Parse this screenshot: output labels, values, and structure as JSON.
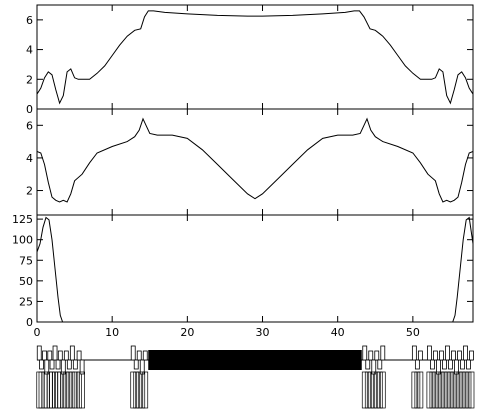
{
  "chart_data": [
    {
      "type": "line",
      "panel": "top",
      "xlim": [
        0,
        58
      ],
      "ylim": [
        0,
        7
      ],
      "yticks": [
        0,
        2,
        4,
        6
      ],
      "show_xtick_labels": false,
      "series": [
        {
          "x": [
            0,
            0.5,
            1,
            1.5,
            2,
            2.5,
            3,
            3.5,
            4,
            4.5,
            5,
            5.5,
            6,
            7,
            8,
            9,
            10,
            11,
            12,
            13,
            13.8,
            14.3,
            14.8,
            15.5,
            17,
            20,
            24,
            28,
            30,
            34,
            38,
            41,
            42.2,
            42.9,
            43.5,
            44.3,
            45,
            46,
            47,
            48,
            49,
            50,
            51,
            52,
            52.5,
            53,
            53.5,
            54,
            54.5,
            55,
            55.5,
            56,
            56.5,
            57,
            57.5,
            58
          ],
          "y": [
            1.0,
            1.4,
            2.1,
            2.5,
            2.3,
            1.3,
            0.4,
            0.9,
            2.5,
            2.7,
            2.1,
            2.0,
            2.0,
            2.0,
            2.4,
            2.9,
            3.6,
            4.3,
            4.9,
            5.3,
            5.4,
            6.2,
            6.6,
            6.6,
            6.5,
            6.4,
            6.3,
            6.25,
            6.25,
            6.3,
            6.4,
            6.5,
            6.6,
            6.6,
            6.2,
            5.4,
            5.3,
            4.9,
            4.3,
            3.6,
            2.9,
            2.4,
            2.0,
            2.0,
            2.0,
            2.1,
            2.7,
            2.5,
            0.9,
            0.4,
            1.3,
            2.3,
            2.5,
            2.1,
            1.4,
            1.0
          ]
        }
      ]
    },
    {
      "type": "line",
      "panel": "middle",
      "xlim": [
        0,
        58
      ],
      "ylim": [
        0.5,
        7
      ],
      "yticks": [
        2,
        4,
        6
      ],
      "show_xtick_labels": false,
      "series": [
        {
          "x": [
            0,
            0.5,
            1,
            1.5,
            2,
            2.5,
            3,
            3.5,
            4,
            4.5,
            5,
            6,
            7,
            8,
            10,
            12,
            13,
            13.6,
            14.1,
            14.5,
            15,
            16,
            18,
            20,
            22,
            24,
            26,
            28,
            29,
            30,
            32,
            34,
            36,
            38,
            40,
            42,
            43,
            43.5,
            43.9,
            44.4,
            45,
            46,
            48,
            50,
            51,
            52,
            53,
            53.5,
            54,
            54.5,
            55,
            55.5,
            56,
            56.5,
            57,
            57.5,
            58
          ],
          "y": [
            4.4,
            4.3,
            3.6,
            2.5,
            1.6,
            1.4,
            1.3,
            1.4,
            1.3,
            1.8,
            2.6,
            3.0,
            3.7,
            4.3,
            4.7,
            5.0,
            5.3,
            5.7,
            6.4,
            6.0,
            5.5,
            5.4,
            5.4,
            5.2,
            4.5,
            3.6,
            2.7,
            1.8,
            1.5,
            1.8,
            2.7,
            3.6,
            4.5,
            5.2,
            5.4,
            5.4,
            5.5,
            6.0,
            6.4,
            5.7,
            5.3,
            5.0,
            4.7,
            4.3,
            3.7,
            3.0,
            2.6,
            1.8,
            1.3,
            1.4,
            1.3,
            1.4,
            1.6,
            2.5,
            3.6,
            4.3,
            4.4
          ]
        }
      ]
    },
    {
      "type": "line",
      "panel": "bottom",
      "xlim": [
        0,
        58
      ],
      "ylim": [
        0,
        130
      ],
      "yticks": [
        0,
        25,
        50,
        75,
        100,
        125
      ],
      "xticks": [
        0,
        10,
        20,
        30,
        40,
        50
      ],
      "series": [
        {
          "x": [
            0,
            0.4,
            0.8,
            1.2,
            1.6,
            2.0,
            2.4,
            2.8,
            3.1,
            3.4,
            55.3,
            55.6,
            55.9,
            56.3,
            56.7,
            57.1,
            57.5,
            58
          ],
          "y": [
            85,
            95,
            115,
            127,
            124,
            100,
            65,
            30,
            8,
            0,
            0,
            8,
            30,
            65,
            100,
            124,
            127,
            95
          ]
        }
      ]
    }
  ],
  "lattice": {
    "xlim": [
      0,
      58
    ],
    "thick_block": {
      "x_start": 14.8,
      "x_end": 43.2
    }
  }
}
